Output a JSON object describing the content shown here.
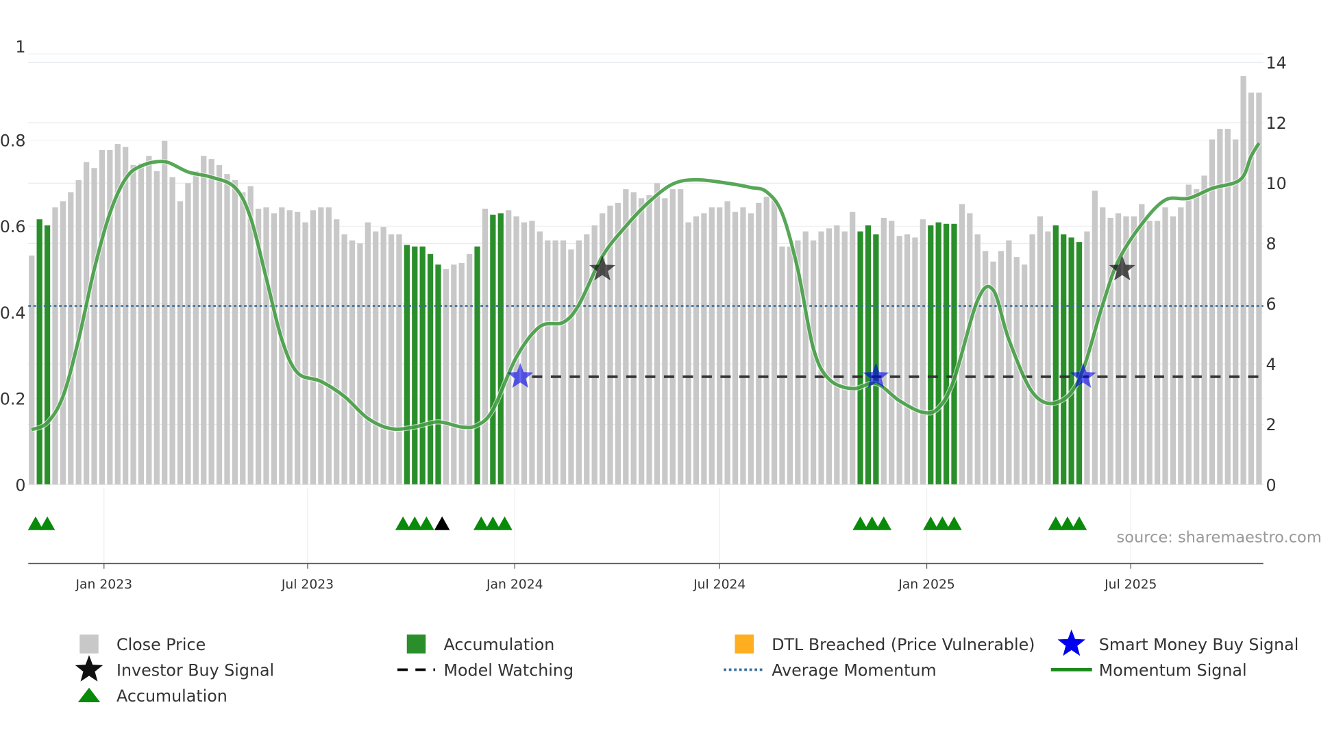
{
  "chart_data": {
    "type": "bar",
    "title": "",
    "source": "source: sharemaestro.com",
    "left_axis": {
      "ticks": [
        "0",
        "0.2",
        "0.4",
        "0.6",
        "0.8",
        "1"
      ],
      "range": [
        0,
        1
      ]
    },
    "right_axis": {
      "ticks": [
        "0",
        "2",
        "4",
        "6",
        "8",
        "10",
        "12",
        "14"
      ],
      "range": [
        0,
        14
      ]
    },
    "x_ticks": [
      {
        "label": "Jan 2023",
        "index": 9.25
      },
      {
        "label": "Jul 2023",
        "index": 35.3
      },
      {
        "label": "Jan 2024",
        "index": 61.8
      },
      {
        "label": "Jul 2024",
        "index": 88.0
      },
      {
        "label": "Jan 2025",
        "index": 114.5
      },
      {
        "label": "Jul 2025",
        "index": 140.6
      }
    ],
    "close_price": [
      7.6,
      8.8,
      8.6,
      9.2,
      9.4,
      9.7,
      10.1,
      10.7,
      10.5,
      11.1,
      11.1,
      11.3,
      11.2,
      10.6,
      10.65,
      10.9,
      10.4,
      11.4,
      10.2,
      9.4,
      10.0,
      10.4,
      10.9,
      10.8,
      10.6,
      10.3,
      10.1,
      9.7,
      9.9,
      9.15,
      9.2,
      9.0,
      9.2,
      9.1,
      9.05,
      8.7,
      9.1,
      9.2,
      9.2,
      8.8,
      8.3,
      8.1,
      8.0,
      8.7,
      8.4,
      8.55,
      8.3,
      8.3,
      7.95,
      7.9,
      7.9,
      7.65,
      7.3,
      7.15,
      7.3,
      7.35,
      7.65,
      7.9,
      9.15,
      8.95,
      9.0,
      9.1,
      8.9,
      8.7,
      8.75,
      8.4,
      8.1,
      8.1,
      8.1,
      7.8,
      8.1,
      8.3,
      8.6,
      9.0,
      9.25,
      9.35,
      9.8,
      9.7,
      9.5,
      9.6,
      10.0,
      9.5,
      9.8,
      9.8,
      8.7,
      8.9,
      9.0,
      9.2,
      9.2,
      9.4,
      9.05,
      9.2,
      9.0,
      9.35,
      9.55,
      9.45,
      7.9,
      7.9,
      8.1,
      8.4,
      8.1,
      8.4,
      8.5,
      8.6,
      8.4,
      9.05,
      8.4,
      8.6,
      8.3,
      8.85,
      8.75,
      8.25,
      8.3,
      8.2,
      8.8,
      8.6,
      8.7,
      8.65,
      8.65,
      9.3,
      9.0,
      8.3,
      7.75,
      7.4,
      7.75,
      8.1,
      7.55,
      7.3,
      8.3,
      8.9,
      8.4,
      8.6,
      8.3,
      8.2,
      8.05,
      8.4,
      9.75,
      9.2,
      8.85,
      9.0,
      8.9,
      8.9,
      9.3,
      8.75,
      8.75,
      9.2,
      8.9,
      9.2,
      9.95,
      9.8,
      10.25,
      11.45,
      11.8,
      11.8,
      11.45,
      13.55,
      13.0,
      13.0
    ],
    "accumulation_bars": [
      1,
      2,
      48,
      49,
      50,
      51,
      52,
      57,
      59,
      60,
      106,
      107,
      108,
      115,
      116,
      117,
      118,
      131,
      132,
      133,
      134
    ],
    "momentum_signal": [
      [
        0,
        0.128
      ],
      [
        2,
        0.144
      ],
      [
        4,
        0.205
      ],
      [
        6,
        0.337
      ],
      [
        8,
        0.5
      ],
      [
        10,
        0.63
      ],
      [
        12,
        0.71
      ],
      [
        14,
        0.74
      ],
      [
        17,
        0.75
      ],
      [
        20,
        0.726
      ],
      [
        23,
        0.714
      ],
      [
        26,
        0.69
      ],
      [
        28,
        0.62
      ],
      [
        30,
        0.48
      ],
      [
        32,
        0.337
      ],
      [
        34,
        0.26
      ],
      [
        37,
        0.24
      ],
      [
        40,
        0.205
      ],
      [
        43,
        0.154
      ],
      [
        46,
        0.13
      ],
      [
        49,
        0.134
      ],
      [
        52,
        0.146
      ],
      [
        55,
        0.134
      ],
      [
        57,
        0.138
      ],
      [
        59,
        0.174
      ],
      [
        62,
        0.296
      ],
      [
        65,
        0.367
      ],
      [
        68,
        0.377
      ],
      [
        70,
        0.418
      ],
      [
        73,
        0.53
      ],
      [
        76,
        0.6
      ],
      [
        79,
        0.657
      ],
      [
        82,
        0.698
      ],
      [
        85,
        0.708
      ],
      [
        89,
        0.7
      ],
      [
        92,
        0.69
      ],
      [
        94,
        0.68
      ],
      [
        96,
        0.63
      ],
      [
        98,
        0.5
      ],
      [
        100,
        0.316
      ],
      [
        102,
        0.245
      ],
      [
        105,
        0.223
      ],
      [
        108,
        0.235
      ],
      [
        111,
        0.195
      ],
      [
        114,
        0.168
      ],
      [
        116,
        0.178
      ],
      [
        118,
        0.245
      ],
      [
        121,
        0.428
      ],
      [
        123,
        0.452
      ],
      [
        125,
        0.337
      ],
      [
        128,
        0.215
      ],
      [
        131,
        0.19
      ],
      [
        134,
        0.245
      ],
      [
        137,
        0.418
      ],
      [
        139,
        0.52
      ],
      [
        142,
        0.605
      ],
      [
        145,
        0.661
      ],
      [
        148,
        0.665
      ],
      [
        151,
        0.688
      ],
      [
        154.6,
        0.708
      ],
      [
        156,
        0.763
      ],
      [
        157,
        0.793
      ]
    ],
    "average_momentum": 0.415,
    "model_watching": {
      "value": 3.58,
      "from_index": 64
    },
    "smart_money_buy": [
      {
        "index": 62.5,
        "value": 3.58
      },
      {
        "index": 108,
        "value": 3.58
      },
      {
        "index": 134.5,
        "value": 3.58
      }
    ],
    "investor_buy": [
      {
        "index": 73,
        "momentum": 0.5
      },
      {
        "index": 139.5,
        "momentum": 0.5
      }
    ],
    "accumulation_markers": [
      0.5,
      2,
      47.5,
      49,
      50.5,
      57.5,
      59,
      60.5,
      106,
      107.5,
      109,
      115,
      116.5,
      118,
      131,
      132.5,
      134
    ],
    "other_markers": [
      52.5
    ],
    "colors": {
      "close": "#c8c8c8",
      "accumulation": "#2a8f2a",
      "dtl": "#ffae1f",
      "smart_money": "#0000ee",
      "investor": "#111111",
      "watching": "#333333",
      "avg_momentum": "#3a6e9a",
      "momentum": "#1f8a1f"
    },
    "legend": [
      {
        "label": "Close Price",
        "icon": "gray-square"
      },
      {
        "label": "Accumulation",
        "icon": "green-square"
      },
      {
        "label": "DTL Breached (Price Vulnerable)",
        "icon": "orange-square"
      },
      {
        "label": "Smart Money Buy Signal",
        "icon": "blue-star"
      },
      {
        "label": "Investor Buy Signal",
        "icon": "black-star"
      },
      {
        "label": "Model Watching",
        "icon": "dashed-line"
      },
      {
        "label": "Average Momentum",
        "icon": "dotted-line"
      },
      {
        "label": "Momentum Signal",
        "icon": "green-line"
      },
      {
        "label": "Accumulation",
        "icon": "green-triangle"
      }
    ]
  }
}
